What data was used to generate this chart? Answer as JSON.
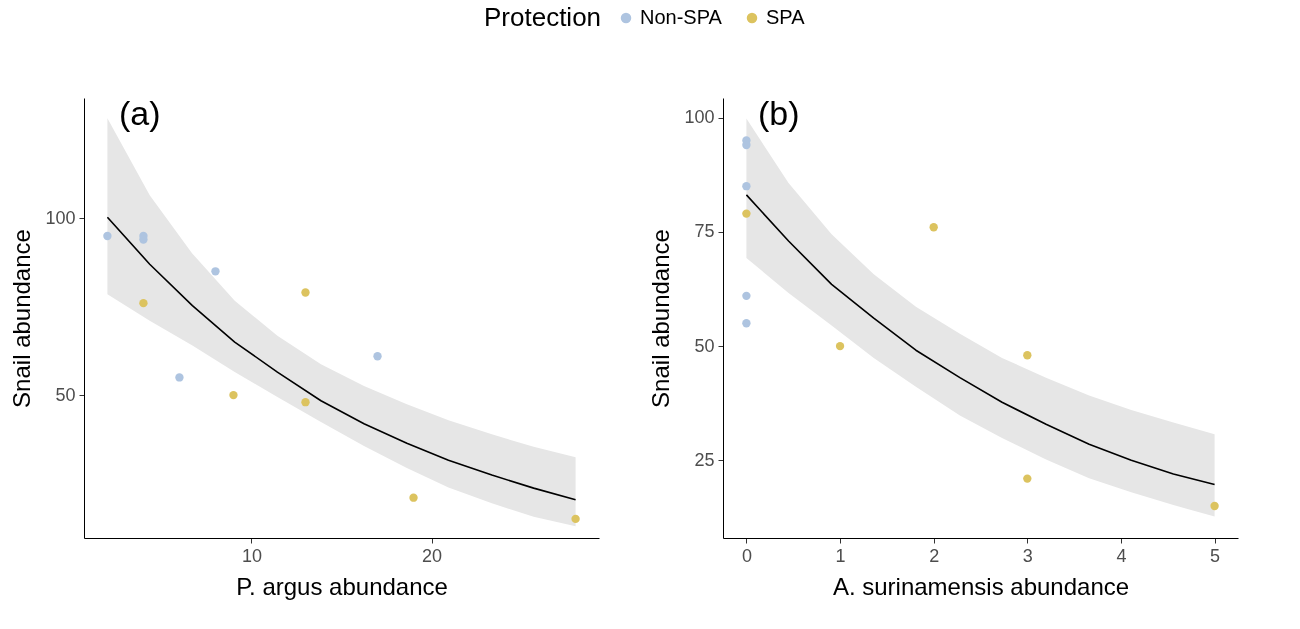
{
  "chart_data": [
    {
      "type": "scatter",
      "xlabel": "P. argus abundance",
      "ylabel": "Snail abundance",
      "legend_title": "Protection",
      "legend": "top",
      "grid": false,
      "annotations": [
        "(a)"
      ],
      "xlim": [
        0.7,
        29.3
      ],
      "xticks": [
        10,
        20
      ],
      "ylim": [
        9.6,
        134
      ],
      "yticks": [
        50,
        100
      ],
      "series": [
        {
          "name": "Non-SPA",
          "color": "#aec4e0",
          "marker": "circle",
          "x": [
            2,
            4,
            4,
            8,
            6,
            17
          ],
          "values": [
            95,
            95,
            94,
            85,
            55,
            61
          ]
        },
        {
          "name": "SPA",
          "color": "#dcc35f",
          "marker": "circle",
          "x": [
            4,
            13,
            9,
            13,
            19,
            28
          ],
          "values": [
            76,
            79,
            50,
            48,
            21,
            15
          ]
        },
        {
          "type": "line",
          "color": "#000000",
          "x": [
            2,
            4.35,
            6.72,
            9.07,
            11.44,
            13.86,
            16.25,
            18.63,
            20.94,
            23.35,
            25.67,
            28
          ],
          "values": [
            100.3,
            87,
            75.3,
            65,
            56.5,
            48.4,
            41.9,
            36.4,
            31.6,
            27.4,
            23.7,
            20.4
          ],
          "lower": [
            78.5,
            71,
            64,
            56.5,
            49.5,
            42.4,
            35.6,
            29.4,
            23.9,
            19.4,
            15.6,
            12.9
          ],
          "upper": [
            128.3,
            106.5,
            90,
            76.7,
            66.8,
            58.7,
            52.6,
            47.4,
            42.9,
            38.9,
            35.4,
            32.4
          ]
        }
      ]
    },
    {
      "type": "scatter",
      "xlabel": "A. surinamensis abundance",
      "ylabel": "Snail abundance",
      "grid": false,
      "annotations": [
        "(b)"
      ],
      "xlim": [
        -0.25,
        5.25
      ],
      "xticks": [
        0,
        1,
        2,
        3,
        4,
        5
      ],
      "ylim": [
        8,
        104.3
      ],
      "yticks": [
        25,
        50,
        75,
        100
      ],
      "series": [
        {
          "name": "Non-SPA",
          "color": "#aec4e0",
          "marker": "circle",
          "x": [
            0,
            0,
            0,
            0,
            0
          ],
          "values": [
            95,
            94,
            85,
            61,
            55
          ]
        },
        {
          "name": "SPA",
          "color": "#dcc35f",
          "marker": "circle",
          "x": [
            0,
            2,
            1,
            3,
            3,
            5
          ],
          "values": [
            79,
            76,
            50,
            48,
            21,
            15
          ]
        },
        {
          "type": "line",
          "color": "#000000",
          "x": [
            0,
            0.45,
            0.91,
            1.36,
            1.81,
            2.28,
            2.73,
            3.2,
            3.66,
            4.11,
            4.56,
            5
          ],
          "values": [
            83.1,
            73,
            63.5,
            56.1,
            49.1,
            43.1,
            37.7,
            32.9,
            28.5,
            25,
            22,
            19.7
          ],
          "lower": [
            69.3,
            61.6,
            54.5,
            47.4,
            41.1,
            34.8,
            29.9,
            25.2,
            21.1,
            18,
            15.2,
            12.7
          ],
          "upper": [
            99.8,
            85.7,
            74.5,
            65.7,
            58.6,
            52.7,
            47.4,
            43.1,
            39.2,
            36,
            33.3,
            30.7
          ]
        }
      ]
    }
  ]
}
